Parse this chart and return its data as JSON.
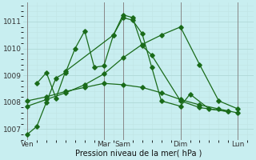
{
  "xlabel": "Pression niveau de la mer( hPa )",
  "bg_color": "#c8eef0",
  "line_color": "#1a6b1a",
  "grid_major_color": "#b0d8d8",
  "grid_minor_color": "#c0e4e4",
  "ylim": [
    1006.6,
    1011.7
  ],
  "xlim": [
    -0.2,
    11.8
  ],
  "ytick_values": [
    1007,
    1008,
    1009,
    1010,
    1011
  ],
  "xtick_labels": [
    "Ven",
    "Mar",
    "Sam",
    "Dim",
    "Lun"
  ],
  "xtick_positions": [
    0,
    4,
    5,
    8,
    11
  ],
  "line1_x": [
    0,
    0.5,
    1.0,
    1.5,
    2.0,
    2.5,
    3.0,
    3.5,
    4.0,
    4.5,
    5.0,
    5.5,
    6.0,
    6.5,
    7.0,
    8.0,
    8.5,
    9.5,
    10.5
  ],
  "line1_y": [
    1006.8,
    1007.1,
    1008.0,
    1008.9,
    1009.1,
    1010.0,
    1010.65,
    1009.3,
    1009.35,
    1010.5,
    1011.15,
    1011.05,
    1010.55,
    1009.3,
    1008.05,
    1007.85,
    1008.3,
    1007.75,
    1007.65
  ],
  "line2_x": [
    0.5,
    1.0,
    1.5,
    2.0,
    4.5,
    5.0,
    5.5,
    6.0,
    6.5,
    8.0,
    9.0,
    10.5
  ],
  "line2_y": [
    1008.7,
    1009.1,
    1008.15,
    1009.15,
    1010.5,
    1011.25,
    1011.15,
    1010.1,
    1009.75,
    1008.05,
    1007.8,
    1007.65
  ],
  "line3_x": [
    0,
    1,
    2,
    3,
    4,
    5,
    6,
    7,
    8,
    9,
    10,
    11
  ],
  "line3_y": [
    1008.05,
    1008.2,
    1008.4,
    1008.55,
    1008.7,
    1008.65,
    1008.55,
    1008.35,
    1008.1,
    1007.9,
    1007.75,
    1007.6
  ],
  "line4_x": [
    0,
    1,
    2,
    3,
    4,
    5,
    6,
    7,
    8,
    9,
    10,
    11
  ],
  "line4_y": [
    1007.85,
    1008.1,
    1008.35,
    1008.65,
    1009.05,
    1009.65,
    1010.15,
    1010.5,
    1010.8,
    1009.4,
    1008.05,
    1007.75
  ]
}
